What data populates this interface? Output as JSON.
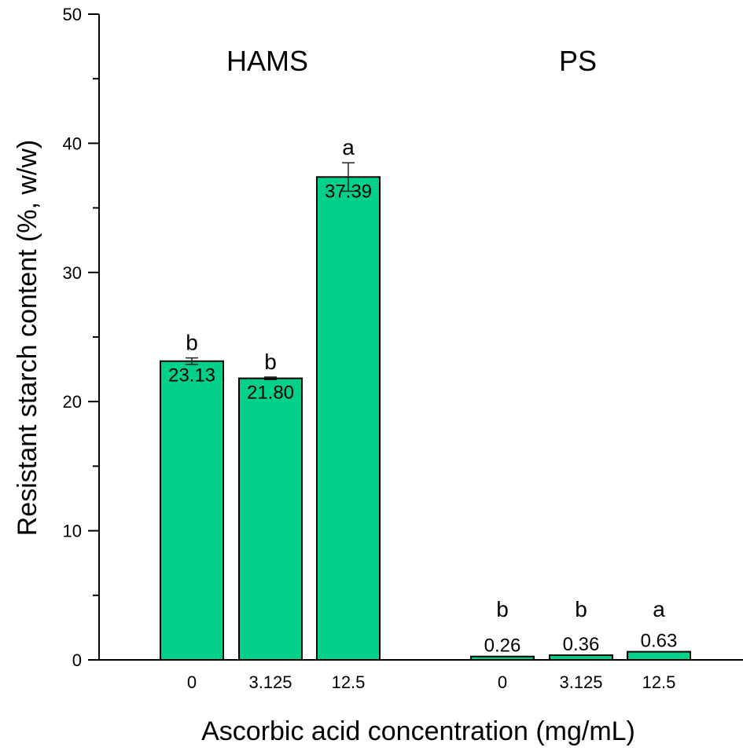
{
  "chart_data": {
    "type": "bar",
    "title": "",
    "xlabel": "Ascorbic acid concentration (mg/mL)",
    "ylabel": "Resistant starch content (%, w/w)",
    "ylim": [
      0,
      50
    ],
    "yticks": [
      0,
      10,
      20,
      30,
      40,
      50
    ],
    "grid": false,
    "bar_color": "#00d08c",
    "groups": [
      {
        "name": "HAMS",
        "categories": [
          "0",
          "3.125",
          "12.5"
        ],
        "values": [
          23.13,
          21.8,
          37.39
        ],
        "errors": [
          0.25,
          0.1,
          1.1
        ],
        "value_labels": [
          "23.13",
          "21.80",
          "37.39"
        ],
        "significance": [
          "b",
          "b",
          "a"
        ]
      },
      {
        "name": "PS",
        "categories": [
          "0",
          "3.125",
          "12.5"
        ],
        "values": [
          0.26,
          0.36,
          0.63
        ],
        "errors": [
          0.0,
          0.0,
          0.0
        ],
        "value_labels": [
          "0.26",
          "0.36",
          "0.63"
        ],
        "significance": [
          "b",
          "b",
          "a"
        ]
      }
    ]
  }
}
